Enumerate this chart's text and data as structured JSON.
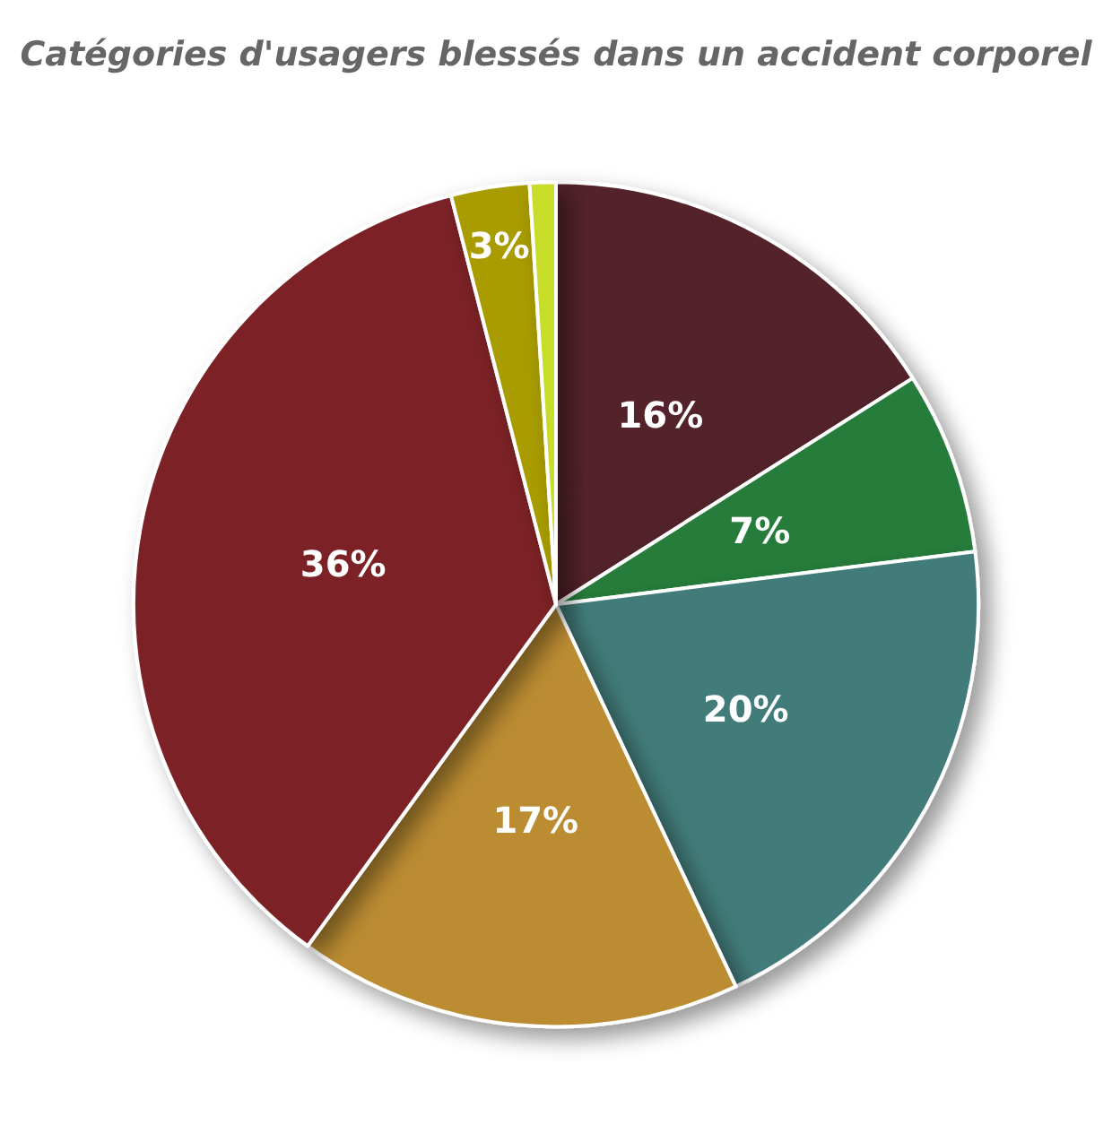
{
  "chart_data": {
    "type": "pie",
    "title": "Catégories d'usagers blessés dans un accident corporel",
    "categories": [
      null,
      null,
      null,
      null,
      null,
      null,
      null
    ],
    "values": [
      16,
      7,
      20,
      17,
      36,
      3,
      1
    ],
    "colors": [
      "#52242a",
      "#267d3a",
      "#427b7a",
      "#bb8c33",
      "#7b2227",
      "#a89c00",
      "#c8dc2a"
    ],
    "value_labels": [
      "16%",
      "7%",
      "20%",
      "17%",
      "36%",
      "3%",
      null
    ]
  }
}
